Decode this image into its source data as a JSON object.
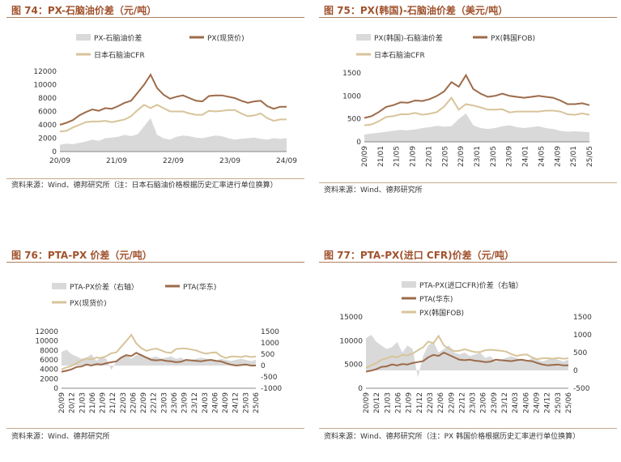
{
  "colors": {
    "area": "#d9d9d9",
    "brown": "#9c6b4a",
    "tan": "#d8c49a"
  },
  "panels": [
    {
      "title": "图 74：PX-石脑油价差（元/吨）",
      "source": "资料来源：Wind、德邦研究所（注：日本石脑油价格根据历史汇率进行单位换算）",
      "chart_data": {
        "type": "area+line",
        "legend": [
          "PX-石脑油价差",
          "PX(现货价)",
          "日本石脑油CFR"
        ],
        "x_ticks": [
          "20/09",
          "21/09",
          "22/09",
          "23/09",
          "24/09"
        ],
        "y_ticks": [
          "0",
          "2000",
          "4000",
          "6000",
          "8000",
          "10000",
          "12000"
        ],
        "ylim": [
          0,
          12000
        ],
        "series": [
          {
            "name": "PX-石脑油价差",
            "kind": "area",
            "values": [
              1000,
              1200,
              1100,
              1300,
              1500,
              1800,
              1600,
              2000,
              2100,
              2200,
              2500,
              2300,
              2600,
              3800,
              5000,
              2500,
              2000,
              1800,
              2200,
              2400,
              2300,
              2100,
              2000,
              2200,
              2400,
              2300,
              2000,
              1800,
              1900,
              2000,
              2100,
              1900,
              1800,
              2000,
              1900,
              2000
            ]
          },
          {
            "name": "PX(现货价)",
            "kind": "line",
            "values": [
              4000,
              4300,
              4700,
              5400,
              5900,
              6300,
              6100,
              6500,
              6400,
              6800,
              7300,
              7600,
              8800,
              10000,
              11500,
              9500,
              8500,
              7900,
              8200,
              8400,
              8000,
              7600,
              7500,
              8300,
              8400,
              8400,
              8200,
              8000,
              7600,
              7300,
              7500,
              7600,
              6800,
              6400,
              6700,
              6700
            ]
          },
          {
            "name": "日本石脑油CFR",
            "kind": "line",
            "values": [
              3000,
              3100,
              3600,
              4000,
              4400,
              4500,
              4500,
              4600,
              4400,
              4600,
              4800,
              5300,
              6200,
              7000,
              6500,
              7000,
              6500,
              6000,
              6000,
              6000,
              5700,
              5500,
              5500,
              6100,
              6000,
              6100,
              6200,
              6200,
              5700,
              5300,
              5400,
              5700,
              5000,
              4600,
              4800,
              4800
            ]
          }
        ]
      }
    },
    {
      "title": "图 75：PX(韩国)-石脑油价差（美元/吨）",
      "source": "资料来源：Wind、德邦研究所",
      "chart_data": {
        "type": "area+line",
        "legend": [
          "PX(韩国)-石脑油价差",
          "PX(韩国FOB)",
          "日本石脑油CFR"
        ],
        "x_ticks": [
          "20/09",
          "21/01",
          "21/05",
          "21/09",
          "22/01",
          "22/05",
          "22/09",
          "23/01",
          "23/05",
          "23/09",
          "24/01",
          "24/05",
          "24/09",
          "25/01",
          "25/05"
        ],
        "y_ticks": [
          "0",
          "500",
          "1000",
          "1500"
        ],
        "ylim": [
          0,
          1500
        ],
        "series": [
          {
            "name": "PX(韩国)-石脑油价差",
            "kind": "area",
            "values": [
              160,
              180,
              200,
              220,
              240,
              260,
              250,
              270,
              300,
              320,
              350,
              330,
              340,
              500,
              620,
              360,
              300,
              280,
              300,
              340,
              360,
              320,
              300,
              320,
              340,
              300,
              280,
              240,
              220,
              230,
              220,
              210
            ]
          },
          {
            "name": "PX(韩国FOB)",
            "kind": "line",
            "values": [
              520,
              560,
              650,
              760,
              800,
              860,
              850,
              900,
              890,
              930,
              1000,
              1100,
              1300,
              1200,
              1450,
              1150,
              1050,
              980,
              1000,
              1050,
              1000,
              980,
              960,
              980,
              1000,
              980,
              960,
              900,
              820,
              820,
              840,
              800
            ]
          },
          {
            "name": "日本石脑油CFR",
            "kind": "line",
            "values": [
              360,
              380,
              450,
              540,
              560,
              600,
              600,
              630,
              590,
              610,
              650,
              770,
              960,
              700,
              820,
              790,
              750,
              700,
              700,
              710,
              640,
              660,
              660,
              660,
              660,
              680,
              680,
              660,
              600,
              590,
              620,
              590
            ]
          }
        ]
      }
    },
    {
      "title": "图 76：PTA-PX 价差（元/吨）",
      "source": "资料来源：Wind、德邦研究所",
      "chart_data": {
        "type": "area+line",
        "legend": [
          "PTA-PX价差（右轴）",
          "PTA(华东)",
          "PX(现货价)"
        ],
        "x_ticks": [
          "20/09",
          "20/12",
          "21/03",
          "21/06",
          "21/09",
          "21/12",
          "22/03",
          "22/06",
          "22/09",
          "22/12",
          "23/03",
          "23/06",
          "23/09",
          "23/12",
          "24/03",
          "24/06",
          "24/09",
          "24/12",
          "25/03",
          "25/06"
        ],
        "y_left_ticks": [
          "0",
          "2000",
          "4000",
          "6000",
          "8000",
          "10000",
          "12000"
        ],
        "ylim_left": [
          0,
          12000
        ],
        "y_right_ticks": [
          "-1000",
          "-500",
          "0",
          "500",
          "1000",
          "1500"
        ],
        "ylim_right": [
          -1000,
          1500
        ],
        "series": [
          {
            "name": "PTA-PX价差（右轴）",
            "kind": "area",
            "axis": "right",
            "values": [
              600,
              700,
              500,
              400,
              300,
              350,
              500,
              200,
              400,
              300,
              -200,
              200,
              400,
              500,
              300,
              450,
              500,
              400,
              350,
              400,
              300,
              350,
              400,
              300,
              350,
              200,
              250,
              300,
              350,
              300,
              250,
              200,
              300,
              250,
              200,
              250,
              300,
              250,
              200,
              250
            ]
          },
          {
            "name": "PTA(华东)",
            "kind": "line",
            "axis": "left",
            "values": [
              3500,
              3700,
              4000,
              4500,
              4600,
              5000,
              4800,
              5100,
              5000,
              5300,
              5500,
              5700,
              6500,
              7000,
              6800,
              7500,
              7000,
              6500,
              6000,
              5900,
              6000,
              5800,
              5700,
              5500,
              5600,
              6000,
              5900,
              5800,
              5700,
              5900,
              6000,
              5800,
              5700,
              5300,
              5000,
              4800,
              4900,
              5000,
              4800,
              4800
            ]
          },
          {
            "name": "PX(现货价)",
            "kind": "line",
            "axis": "left",
            "values": [
              4000,
              4400,
              4700,
              5300,
              5900,
              6300,
              6100,
              6500,
              6400,
              6800,
              7400,
              7600,
              8800,
              10000,
              11300,
              9500,
              8500,
              7900,
              8200,
              8400,
              8000,
              7600,
              7500,
              8300,
              8400,
              8400,
              8200,
              8000,
              7600,
              7300,
              7500,
              7600,
              6800,
              6400,
              6700,
              6700,
              6600,
              6800,
              6600,
              6700
            ]
          }
        ]
      }
    },
    {
      "title": "图 77：PTA-PX(进口 CFR)价差（元/吨）",
      "source": "资料来源：Wind、德邦研究所（注：PX 韩国价格根据历史汇率进行单位换算）",
      "chart_data": {
        "type": "area+line",
        "legend": [
          "PTA-PX(进口CFR)价差（右轴）",
          "PTA(华东)",
          "PX(韩国FOB)"
        ],
        "x_ticks": [
          "20/09",
          "20/12",
          "21/03",
          "21/06",
          "21/09",
          "21/12",
          "22/03",
          "22/06",
          "22/09",
          "22/12",
          "23/03",
          "23/06",
          "23/09",
          "23/12",
          "24/03",
          "24/06",
          "24/09",
          "24/12",
          "25/03",
          "25/06"
        ],
        "y_left_ticks": [
          "0",
          "5000",
          "10000",
          "15000"
        ],
        "ylim_left": [
          0,
          15000
        ],
        "y_right_ticks": [
          "-500",
          "0",
          "500",
          "1000",
          "1500"
        ],
        "ylim_right": [
          -500,
          1500
        ],
        "series": [
          {
            "name": "PTA-PX(进口CFR)价差（右轴）",
            "kind": "area",
            "axis": "right",
            "values": [
              900,
              1000,
              800,
              700,
              600,
              650,
              800,
              500,
              700,
              600,
              -200,
              400,
              700,
              800,
              500,
              600,
              700,
              500,
              450,
              500,
              400,
              450,
              500,
              350,
              400,
              250,
              300,
              350,
              400,
              350,
              300,
              250,
              350,
              300,
              250,
              300,
              350,
              300,
              250,
              300
            ]
          },
          {
            "name": "PTA(华东)",
            "kind": "line",
            "axis": "left",
            "values": [
              3500,
              3700,
              4000,
              4500,
              4600,
              5000,
              4800,
              5100,
              5000,
              5300,
              5500,
              5700,
              6500,
              7000,
              6800,
              7500,
              7000,
              6500,
              6000,
              5900,
              6000,
              5800,
              5700,
              5500,
              5600,
              6000,
              5900,
              5800,
              5700,
              5900,
              6000,
              5800,
              5700,
              5300,
              5000,
              4800,
              4900,
              5000,
              4800,
              4800
            ]
          },
          {
            "name": "PX(韩国FOB)",
            "kind": "line",
            "axis": "left",
            "values": [
              4300,
              4800,
              5300,
              6000,
              6300,
              6700,
              6500,
              7000,
              6900,
              7300,
              8000,
              8600,
              9800,
              9500,
              11000,
              9000,
              8300,
              7800,
              7900,
              8200,
              7900,
              7600,
              7600,
              8000,
              8100,
              8000,
              7900,
              7700,
              7200,
              6800,
              7000,
              7100,
              6500,
              6100,
              6300,
              6300,
              6200,
              6400,
              6200,
              6300
            ]
          }
        ]
      }
    }
  ]
}
